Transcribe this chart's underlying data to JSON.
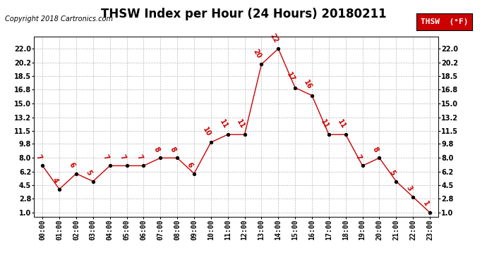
{
  "title": "THSW Index per Hour (24 Hours) 20180211",
  "copyright": "Copyright 2018 Cartronics.com",
  "legend_label": "THSW  (°F)",
  "hours": [
    "00:00",
    "01:00",
    "02:00",
    "03:00",
    "04:00",
    "05:00",
    "06:00",
    "07:00",
    "08:00",
    "09:00",
    "10:00",
    "11:00",
    "12:00",
    "13:00",
    "14:00",
    "15:00",
    "16:00",
    "17:00",
    "18:00",
    "19:00",
    "20:00",
    "21:00",
    "22:00",
    "23:00"
  ],
  "thsw_values": [
    7,
    4,
    6,
    5,
    7,
    7,
    7,
    8,
    8,
    6,
    10,
    11,
    11,
    20,
    22,
    17,
    16,
    11,
    11,
    7,
    8,
    5,
    3,
    1
  ],
  "yticks": [
    1.0,
    2.8,
    4.5,
    6.2,
    8.0,
    9.8,
    11.5,
    13.2,
    15.0,
    16.8,
    18.5,
    20.2,
    22.0
  ],
  "ylim": [
    0.5,
    23.5
  ],
  "xlim": [
    -0.5,
    23.5
  ],
  "line_color": "#cc0000",
  "marker_color": "#000000",
  "bg_color": "#ffffff",
  "grid_color": "#bbbbbb",
  "title_fontsize": 12,
  "copyright_fontsize": 7,
  "tick_fontsize": 7,
  "annotation_fontsize": 7,
  "legend_bg": "#cc0000",
  "legend_text_color": "#ffffff",
  "legend_fontsize": 8
}
